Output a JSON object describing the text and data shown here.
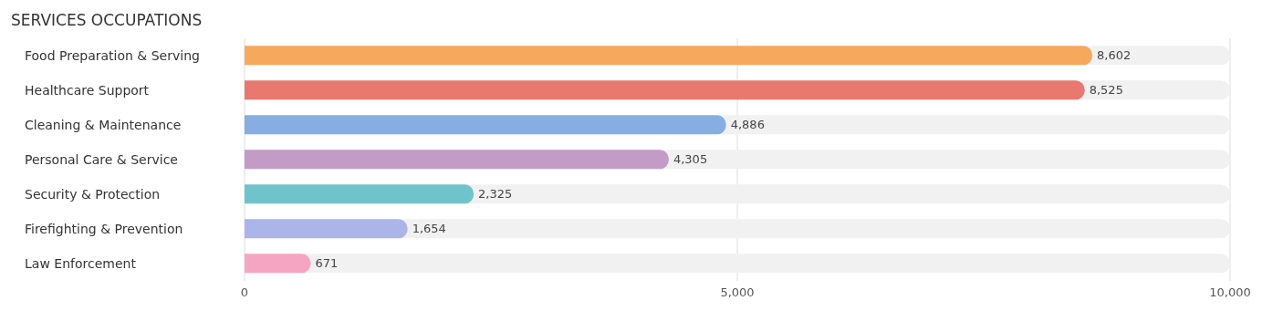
{
  "chart_data": {
    "type": "bar",
    "orientation": "horizontal",
    "title": "SERVICES OCCUPATIONS",
    "categories": [
      "Food Preparation & Serving",
      "Healthcare Support",
      "Cleaning & Maintenance",
      "Personal Care & Service",
      "Security & Protection",
      "Firefighting & Prevention",
      "Law Enforcement"
    ],
    "values": [
      8602,
      8525,
      4886,
      4305,
      2325,
      1654,
      671
    ],
    "colors": [
      "#f6a85d",
      "#e9786f",
      "#86aee2",
      "#c29bc6",
      "#6fc4cb",
      "#abb5ea",
      "#f5a5c2"
    ],
    "xlim": [
      0,
      10000
    ],
    "xticks": [
      {
        "value": 0,
        "label": "0"
      },
      {
        "value": 5000,
        "label": "5,000"
      },
      {
        "value": 10000,
        "label": "10,000"
      }
    ],
    "value_labels": [
      "8,602",
      "8,525",
      "4,886",
      "4,305",
      "2,325",
      "1,654",
      "671"
    ],
    "grid": "x"
  }
}
